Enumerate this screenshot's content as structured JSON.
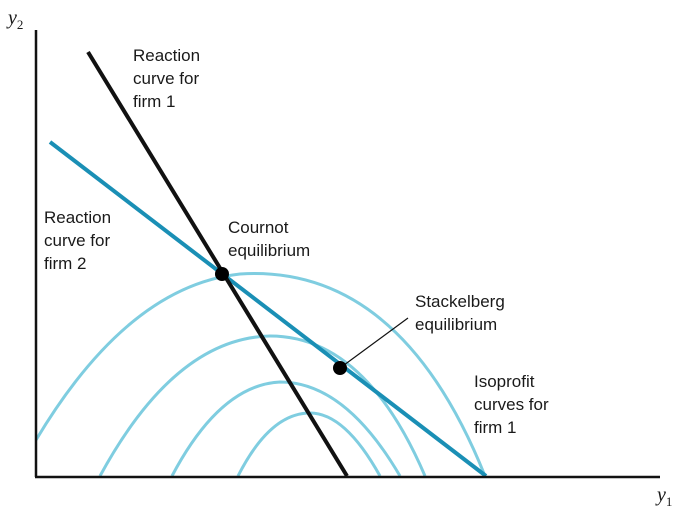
{
  "axes": {
    "y_label": "y",
    "y_sub": "2",
    "x_label": "y",
    "x_sub": "1"
  },
  "labels": {
    "reaction1": [
      "Reaction",
      "curve for",
      "firm 1"
    ],
    "reaction2": [
      "Reaction",
      "curve for",
      "firm 2"
    ],
    "cournot": [
      "Cournot",
      "equilibrium"
    ],
    "stackelberg": [
      "Stackelberg",
      "equilibrium"
    ],
    "isoprofit": [
      "Isoprofit",
      "curves for",
      "firm 1"
    ]
  },
  "colors": {
    "reaction1": "#111111",
    "reaction2": "#1a8fb5",
    "isoprofit": "#7fcde0",
    "point": "#000000",
    "axis": "#111111"
  }
}
